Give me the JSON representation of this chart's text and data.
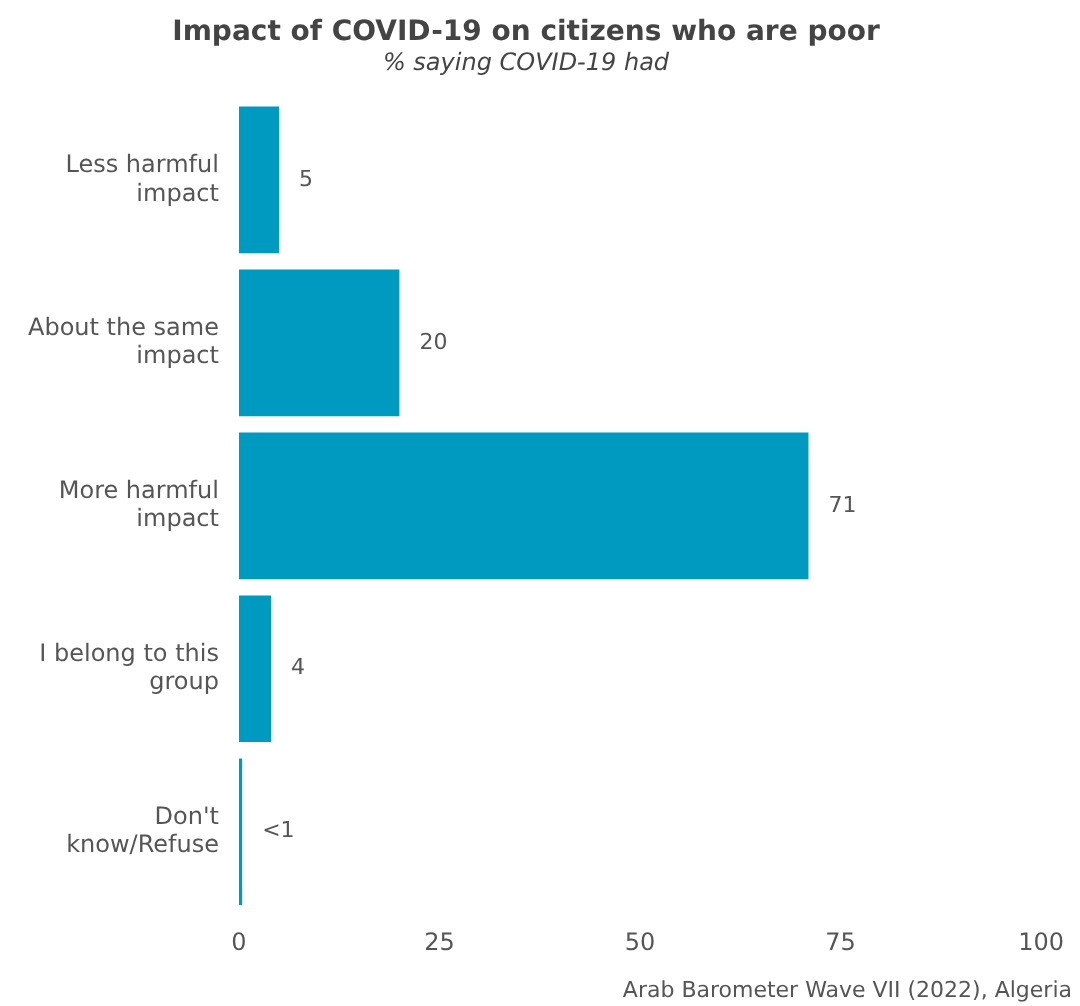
{
  "chart_data": {
    "type": "bar",
    "orientation": "horizontal",
    "title": "Impact of COVID-19 on citizens who are poor",
    "subtitle": "% saying COVID-19 had",
    "categories": [
      "Less harmful impact",
      "About the same impact",
      "More harmful impact",
      "I belong to this group",
      "Don't know/Refuse"
    ],
    "values": [
      5,
      20,
      71,
      4,
      0.4
    ],
    "value_labels": [
      "5",
      "20",
      "71",
      "4",
      "<1"
    ],
    "color": "#0099c0",
    "xlim": [
      0,
      100
    ],
    "xticks": [
      0,
      25,
      50,
      75,
      100
    ],
    "grid": false,
    "legend": false,
    "annotations": [
      "Arab Barometer Wave VII (2022), Algeria"
    ]
  }
}
